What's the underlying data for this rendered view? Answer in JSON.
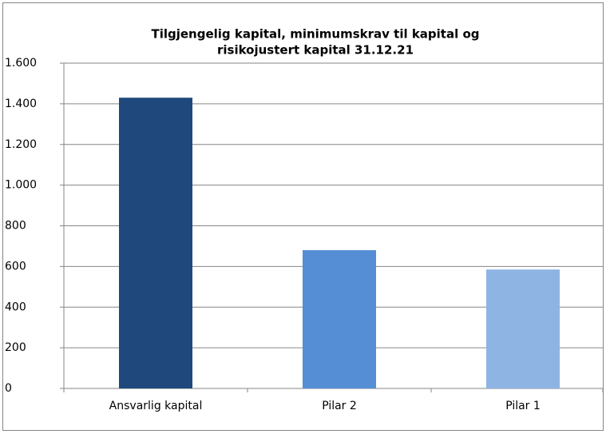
{
  "chart_data": {
    "type": "bar",
    "title": [
      "Tilgjengelig kapital, minimumskrav til kapital og",
      "risikojustert kapital 31.12.21"
    ],
    "categories": [
      "Ansvarlig kapital",
      "Pilar 2",
      "Pilar 1"
    ],
    "values": [
      1430,
      680,
      585
    ],
    "colors": [
      "#1f497d",
      "#558ed5",
      "#8eb4e3"
    ],
    "ylim": [
      0,
      1600
    ],
    "yticks": [
      0,
      200,
      400,
      600,
      800,
      {
        "value": 1000,
        "label": "1.000"
      },
      {
        "value": 1200,
        "label": "1.200"
      },
      {
        "value": 1400,
        "label": "1.400"
      },
      {
        "value": 1600,
        "label": "1.600"
      }
    ],
    "grid": true
  }
}
